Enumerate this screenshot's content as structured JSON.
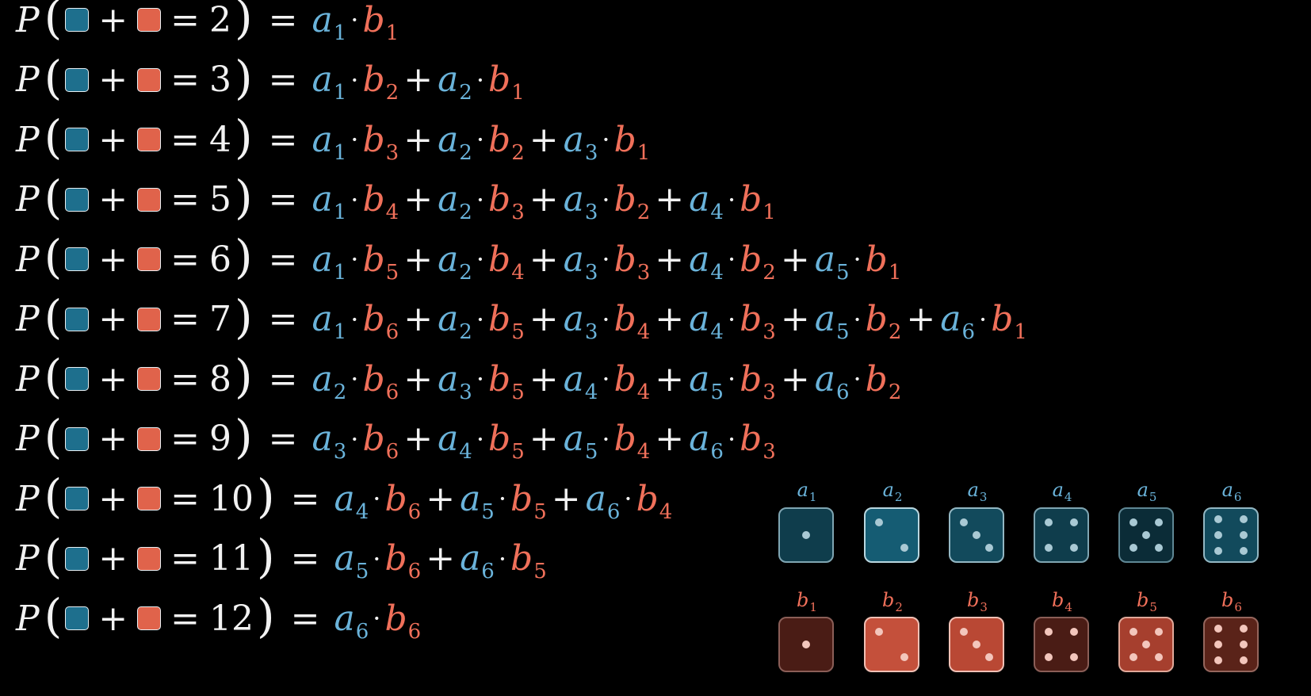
{
  "colors": {
    "a": "#6ab3da",
    "b": "#f0705a",
    "blue_square": "#1e6f8d",
    "red_square": "#e0634b"
  },
  "equations": [
    {
      "P": "P",
      "sum": "2",
      "terms": [
        [
          "a",
          "1",
          "b",
          "1"
        ]
      ]
    },
    {
      "P": "P",
      "sum": "3",
      "terms": [
        [
          "a",
          "1",
          "b",
          "2"
        ],
        [
          "a",
          "2",
          "b",
          "1"
        ]
      ]
    },
    {
      "P": "P",
      "sum": "4",
      "terms": [
        [
          "a",
          "1",
          "b",
          "3"
        ],
        [
          "a",
          "2",
          "b",
          "2"
        ],
        [
          "a",
          "3",
          "b",
          "1"
        ]
      ]
    },
    {
      "P": "P",
      "sum": "5",
      "terms": [
        [
          "a",
          "1",
          "b",
          "4"
        ],
        [
          "a",
          "2",
          "b",
          "3"
        ],
        [
          "a",
          "3",
          "b",
          "2"
        ],
        [
          "a",
          "4",
          "b",
          "1"
        ]
      ]
    },
    {
      "P": "P",
      "sum": "6",
      "terms": [
        [
          "a",
          "1",
          "b",
          "5"
        ],
        [
          "a",
          "2",
          "b",
          "4"
        ],
        [
          "a",
          "3",
          "b",
          "3"
        ],
        [
          "a",
          "4",
          "b",
          "2"
        ],
        [
          "a",
          "5",
          "b",
          "1"
        ]
      ]
    },
    {
      "P": "P",
      "sum": "7",
      "terms": [
        [
          "a",
          "1",
          "b",
          "6"
        ],
        [
          "a",
          "2",
          "b",
          "5"
        ],
        [
          "a",
          "3",
          "b",
          "4"
        ],
        [
          "a",
          "4",
          "b",
          "3"
        ],
        [
          "a",
          "5",
          "b",
          "2"
        ],
        [
          "a",
          "6",
          "b",
          "1"
        ]
      ]
    },
    {
      "P": "P",
      "sum": "8",
      "terms": [
        [
          "a",
          "2",
          "b",
          "6"
        ],
        [
          "a",
          "3",
          "b",
          "5"
        ],
        [
          "a",
          "4",
          "b",
          "4"
        ],
        [
          "a",
          "5",
          "b",
          "3"
        ],
        [
          "a",
          "6",
          "b",
          "2"
        ]
      ]
    },
    {
      "P": "P",
      "sum": "9",
      "terms": [
        [
          "a",
          "3",
          "b",
          "6"
        ],
        [
          "a",
          "4",
          "b",
          "5"
        ],
        [
          "a",
          "5",
          "b",
          "4"
        ],
        [
          "a",
          "6",
          "b",
          "3"
        ]
      ]
    },
    {
      "P": "P",
      "sum": "10",
      "terms": [
        [
          "a",
          "4",
          "b",
          "6"
        ],
        [
          "a",
          "5",
          "b",
          "5"
        ],
        [
          "a",
          "6",
          "b",
          "4"
        ]
      ]
    },
    {
      "P": "P",
      "sum": "11",
      "terms": [
        [
          "a",
          "5",
          "b",
          "6"
        ],
        [
          "a",
          "6",
          "b",
          "5"
        ]
      ]
    },
    {
      "P": "P",
      "sum": "12",
      "terms": [
        [
          "a",
          "6",
          "b",
          "6"
        ]
      ]
    }
  ],
  "dice": {
    "blue": [
      {
        "var": "a",
        "sub": "1",
        "pips": 1,
        "fill": "#0f3d4c",
        "border": "#7fa5b2"
      },
      {
        "var": "a",
        "sub": "2",
        "pips": 2,
        "fill": "#155c73",
        "border": "#b9d6df"
      },
      {
        "var": "a",
        "sub": "3",
        "pips": 3,
        "fill": "#124a5c",
        "border": "#93b7c3"
      },
      {
        "var": "a",
        "sub": "4",
        "pips": 4,
        "fill": "#0f3d4c",
        "border": "#7fa5b2"
      },
      {
        "var": "a",
        "sub": "5",
        "pips": 5,
        "fill": "#0b2c37",
        "border": "#5f8794"
      },
      {
        "var": "a",
        "sub": "6",
        "pips": 6,
        "fill": "#124a5c",
        "border": "#93b7c3"
      }
    ],
    "red": [
      {
        "var": "b",
        "sub": "1",
        "pips": 1,
        "fill": "#4a1c15",
        "border": "#8a5e57"
      },
      {
        "var": "b",
        "sub": "2",
        "pips": 2,
        "fill": "#c4503b",
        "border": "#f0c0b5"
      },
      {
        "var": "b",
        "sub": "3",
        "pips": 3,
        "fill": "#b94834",
        "border": "#f0c0b5"
      },
      {
        "var": "b",
        "sub": "4",
        "pips": 4,
        "fill": "#4a1c15",
        "border": "#8a5e57"
      },
      {
        "var": "b",
        "sub": "5",
        "pips": 5,
        "fill": "#a63f2e",
        "border": "#e0a899"
      },
      {
        "var": "b",
        "sub": "6",
        "pips": 6,
        "fill": "#5a2319",
        "border": "#95665d"
      }
    ]
  }
}
